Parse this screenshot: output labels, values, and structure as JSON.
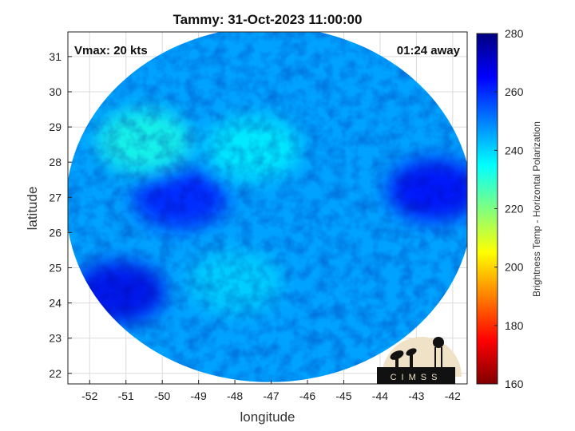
{
  "chart_data": {
    "type": "heatmap",
    "title": "Tammy: 31-Oct-2023 11:00:00",
    "xlabel": "longitude",
    "ylabel": "latitude",
    "xlim": [
      -52.6,
      -41.6
    ],
    "ylim": [
      21.7,
      31.7
    ],
    "x_ticks": [
      -52,
      -51,
      -50,
      -49,
      -48,
      -47,
      -46,
      -45,
      -44,
      -43,
      -42
    ],
    "y_ticks": [
      22,
      23,
      24,
      25,
      26,
      27,
      28,
      29,
      30,
      31
    ],
    "grid": true,
    "annotations": {
      "top_left": "Vmax: 20 kts",
      "top_right": "01:24 away"
    },
    "colorbar": {
      "label": "Brightness Temp - Horizontal Polarization",
      "min": 160,
      "max": 280,
      "ticks": [
        160,
        180,
        200,
        220,
        240,
        260,
        280
      ],
      "colormap": "jet"
    },
    "swath": {
      "center_lon": -47.05,
      "center_lat": 26.8,
      "radius_lon": 5.6,
      "radius_lat": 5.05,
      "background_value": 246,
      "features": [
        {
          "region": "cold band west-to-center",
          "lon": -49.5,
          "lat": 27.0,
          "value": 262
        },
        {
          "region": "deep cold southwest",
          "lon": -51.2,
          "lat": 24.3,
          "value": 268
        },
        {
          "region": "cold cluster east",
          "lon": -42.5,
          "lat": 27.2,
          "value": 266
        },
        {
          "region": "warm northwest arc",
          "lon": -50.5,
          "lat": 28.6,
          "value": 232
        },
        {
          "region": "warm north",
          "lon": -47.5,
          "lat": 28.4,
          "value": 236
        },
        {
          "region": "warm center",
          "lon": -48.0,
          "lat": 24.6,
          "value": 240
        }
      ]
    }
  },
  "logo": {
    "text": "CIMSS"
  }
}
